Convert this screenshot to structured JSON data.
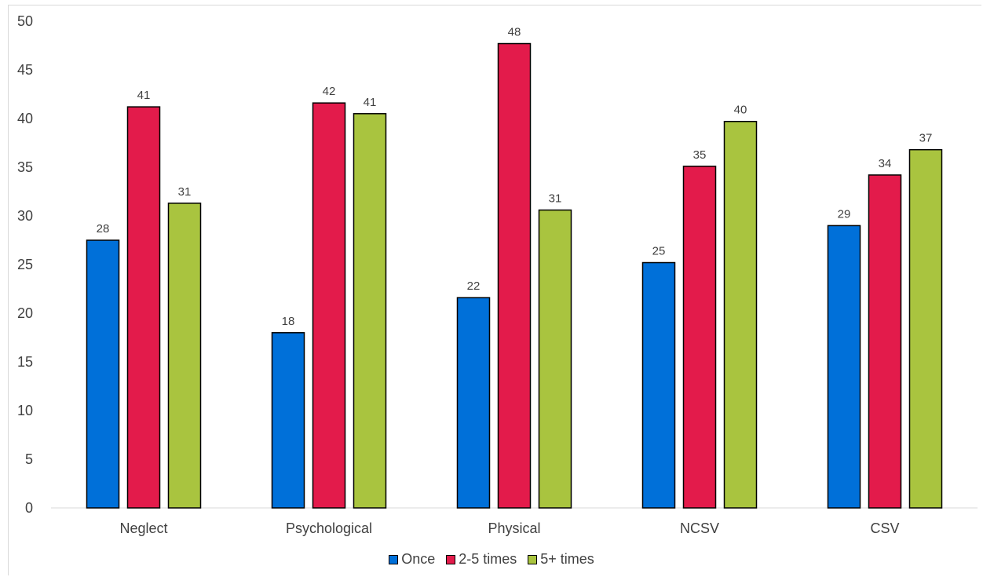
{
  "chart_data": {
    "type": "bar",
    "categories": [
      "Neglect",
      "Psychological",
      "Physical",
      "NCSV",
      "CSV"
    ],
    "series": [
      {
        "name": "Once",
        "color": "#0070d9",
        "values": [
          27.5,
          18,
          21.6,
          25.2,
          29
        ],
        "labels": [
          "28",
          "18",
          "22",
          "25",
          "29"
        ]
      },
      {
        "name": "2-5 times",
        "color": "#e31b4b",
        "values": [
          41.2,
          41.6,
          47.7,
          35.1,
          34.2
        ],
        "labels": [
          "41",
          "42",
          "48",
          "35",
          "34"
        ]
      },
      {
        "name": "5+ times",
        "color": "#a9c43f",
        "values": [
          31.3,
          40.5,
          30.6,
          39.7,
          36.8
        ],
        "labels": [
          "31",
          "41",
          "31",
          "40",
          "37"
        ]
      }
    ],
    "yticks": [
      "0",
      "5",
      "10",
      "15",
      "20",
      "25",
      "30",
      "35",
      "40",
      "45",
      "50"
    ],
    "ylim": [
      0,
      50
    ],
    "grid": false,
    "legend": "bottom"
  }
}
